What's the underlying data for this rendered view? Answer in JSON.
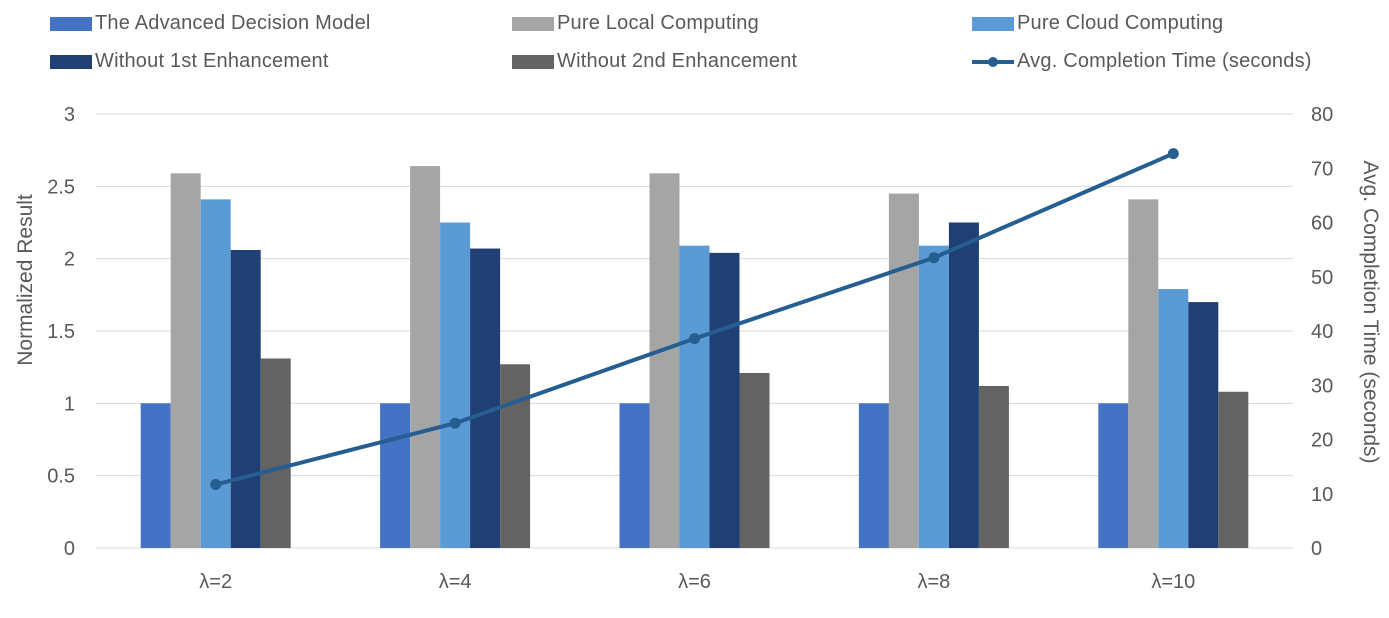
{
  "chart_data": {
    "type": "bar",
    "categories": [
      "λ=2",
      "λ=4",
      "λ=6",
      "λ=8",
      "λ=10"
    ],
    "series": [
      {
        "name": "The Advanced Decision Model",
        "type": "bar",
        "axis": "left",
        "color": "#4472C4",
        "values": [
          1,
          1,
          1,
          1,
          1
        ]
      },
      {
        "name": "Pure Local Computing",
        "type": "bar",
        "axis": "left",
        "color": "#A5A5A5",
        "values": [
          2.59,
          2.64,
          2.59,
          2.45,
          2.41
        ]
      },
      {
        "name": "Pure Cloud Computing",
        "type": "bar",
        "axis": "left",
        "color": "#5B9BD5",
        "values": [
          2.41,
          2.25,
          2.09,
          2.09,
          1.79
        ]
      },
      {
        "name": "Without 1st Enhancement",
        "type": "bar",
        "axis": "left",
        "color": "#203F74",
        "values": [
          2.06,
          2.07,
          2.04,
          2.25,
          1.7
        ]
      },
      {
        "name": "Without 2nd Enhancement",
        "type": "bar",
        "axis": "left",
        "color": "#636363",
        "values": [
          1.31,
          1.27,
          1.21,
          1.12,
          1.08
        ]
      },
      {
        "name": "Avg. Completion Time (seconds)",
        "type": "line",
        "axis": "right",
        "color": "#255E91",
        "values": [
          11.7,
          23.0,
          38.6,
          53.5,
          72.7
        ]
      }
    ],
    "ylabel": "Normalized Result",
    "ylim": [
      0,
      3
    ],
    "yticks": [
      "0",
      "0.5",
      "1",
      "1.5",
      "2",
      "2.5",
      "3"
    ],
    "y2label": "Avg. Completion Time (seconds)",
    "y2lim": [
      0,
      80
    ],
    "y2ticks": [
      "0",
      "10",
      "20",
      "30",
      "40",
      "50",
      "60",
      "70",
      "80"
    ],
    "legend_position": "top",
    "grid": true
  }
}
